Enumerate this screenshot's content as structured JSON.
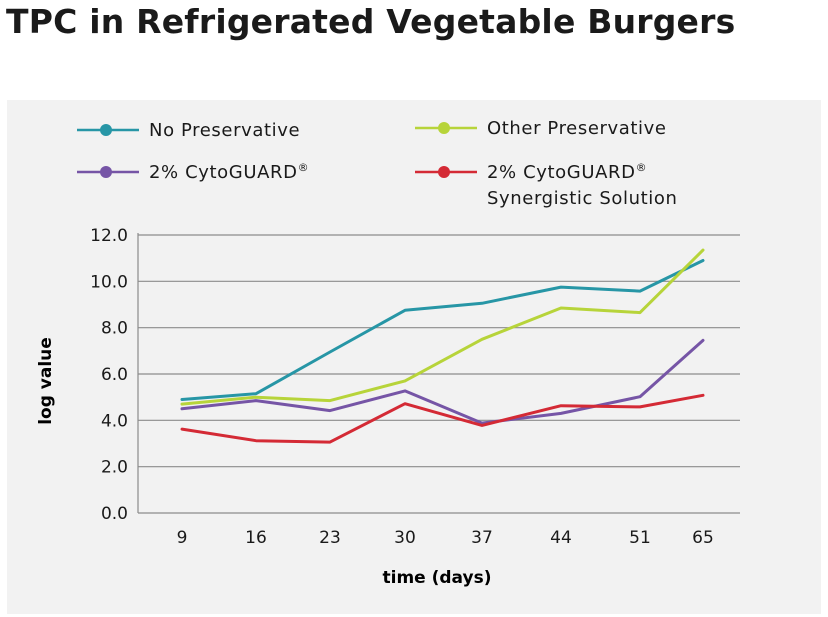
{
  "page": {
    "title": "TPC in Refrigerated Vegetable Burgers"
  },
  "chart_data": {
    "type": "line",
    "title": "TPC in Refrigerated Vegetable Burgers",
    "xlabel": "time (days)",
    "ylabel": "log value",
    "categories": [
      "9",
      "16",
      "23",
      "30",
      "37",
      "44",
      "51",
      "65"
    ],
    "ylim": [
      0,
      12
    ],
    "yticks": [
      "0.0",
      "2.0",
      "4.0",
      "6.0",
      "8.0",
      "10.0",
      "12.0"
    ],
    "grid": true,
    "legend_position": "top",
    "series": [
      {
        "name": "No Preservative",
        "name_sup": "",
        "name_line2": "",
        "color": "#2796a6",
        "values": [
          4.9,
          5.15,
          6.95,
          8.75,
          9.05,
          9.75,
          9.58,
          10.9
        ]
      },
      {
        "name": "Other Preservative",
        "name_sup": "",
        "name_line2": "",
        "color": "#b7d43a",
        "values": [
          4.7,
          5.0,
          4.85,
          5.7,
          7.5,
          8.85,
          8.65,
          11.35
        ]
      },
      {
        "name": "2% CytoGUARD",
        "name_sup": "®",
        "name_line2": "",
        "color": "#7655a6",
        "values": [
          4.5,
          4.85,
          4.42,
          5.27,
          3.88,
          4.3,
          5.02,
          7.45
        ]
      },
      {
        "name": "2% CytoGUARD",
        "name_sup": "®",
        "name_line2": "Synergistic Solution",
        "color": "#d42a35",
        "values": [
          3.62,
          3.12,
          3.06,
          4.72,
          3.78,
          4.63,
          4.58,
          5.08
        ]
      }
    ]
  }
}
